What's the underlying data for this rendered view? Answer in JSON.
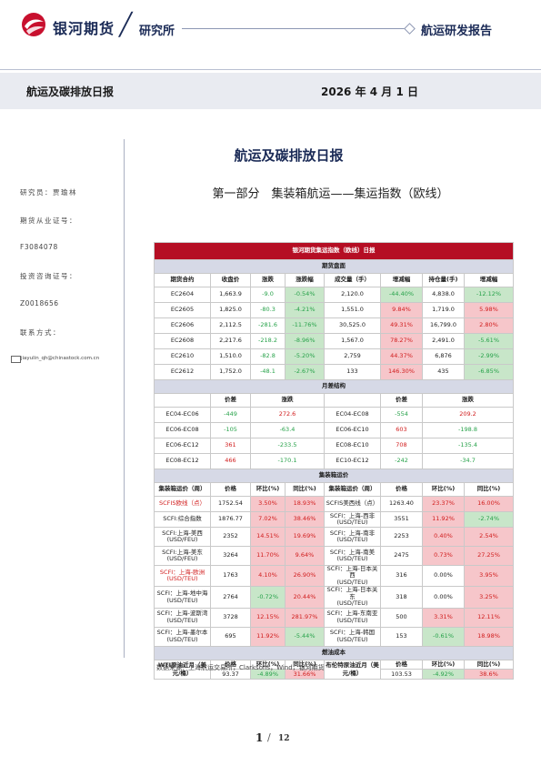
{
  "header": {
    "company": "银河期货",
    "slash": "╱",
    "dept": "研究所",
    "report_type": "航运研发报告"
  },
  "band": {
    "title": "航运及碳排放日报",
    "date": "2026 年 4 月 1 日"
  },
  "sidebar": {
    "researcher_label": "研究员：贾瑜林",
    "futures_cert_label": "期货从业证号：",
    "futures_cert": "F3084078",
    "invest_cert_label": "投资咨询证号：",
    "invest_cert": "Z0018656",
    "contact_label": "联系方式：",
    "email": "jiayulin_qh@chinastock.com.cn"
  },
  "doc_title": "航运及碳排放日报",
  "section_title": "第一部分　集装箱航运——集运指数（欧线）",
  "table": {
    "title": "银河期货集运指数（欧线）日报",
    "sec_futures": "期货盘面",
    "fut_headers": [
      "期货合约",
      "收盘价",
      "涨跌",
      "涨跌幅",
      "成交量（手）",
      "增减幅",
      "持仓量(手)",
      "增减幅"
    ],
    "fut_rows": [
      [
        "EC2604",
        "1,663.9",
        "-9.0",
        "-0.54%",
        "2,120.0",
        "-44.40%",
        "4,838.0",
        "-12.12%"
      ],
      [
        "EC2605",
        "1,825.0",
        "-80.3",
        "-4.21%",
        "1,551.0",
        "9.84%",
        "1,719.0",
        "5.98%"
      ],
      [
        "EC2606",
        "2,112.5",
        "-281.6",
        "-11.76%",
        "30,525.0",
        "49.31%",
        "16,799.0",
        "2.80%"
      ],
      [
        "EC2608",
        "2,217.6",
        "-218.2",
        "-8.96%",
        "1,567.0",
        "78.27%",
        "2,491.0",
        "-5.61%"
      ],
      [
        "EC2610",
        "1,510.0",
        "-82.8",
        "-5.20%",
        "2,759",
        "44.37%",
        "6,876",
        "-2.99%"
      ],
      [
        "EC2612",
        "1,752.0",
        "-48.1",
        "-2.67%",
        "133",
        "146.30%",
        "435",
        "-6.85%"
      ]
    ],
    "sec_spread": "月差结构",
    "spread_headers": [
      "价差",
      "涨跌",
      "价差",
      "涨跌"
    ],
    "spread_rows": [
      [
        "EC04-EC06",
        "-449",
        "272.6",
        "EC04-EC08",
        "-554",
        "209.2"
      ],
      [
        "EC06-EC08",
        "-105",
        "-63.4",
        "EC06-EC10",
        "603",
        "-198.8"
      ],
      [
        "EC06-EC12",
        "361",
        "-233.5",
        "EC08-EC10",
        "708",
        "-135.4"
      ],
      [
        "EC08-EC12",
        "466",
        "-170.1",
        "EC10-EC12",
        "-242",
        "-34.7"
      ]
    ],
    "sec_freight": "集装箱运价",
    "freight_headers": [
      "集装箱运价（周）",
      "价格",
      "环比(%)",
      "同比(%)",
      "集装箱运价（周）",
      "价格",
      "环比(%)",
      "同比(%)"
    ],
    "freight_rows": [
      [
        "SCFIS欧线（点）",
        "1752.54",
        "3.50%",
        "18.93%",
        "SCFIS美西线（点）",
        "1263.40",
        "23.37%",
        "16.00%"
      ],
      [
        "SCFI:综合指数",
        "1876.77",
        "7.02%",
        "38.46%",
        "SCFI：上海-西非\n(USD/TEU)",
        "3551",
        "11.92%",
        "-2.74%"
      ],
      [
        "SCFI:上海-美西\n(USD/FEU)",
        "2352",
        "14.51%",
        "19.69%",
        "SCFI：上海-南非\n(USD/TEU)",
        "2253",
        "0.40%",
        "2.54%"
      ],
      [
        "SCFI:上海-美东\n(USD/FEU)",
        "3264",
        "11.70%",
        "9.64%",
        "SCFI：上海-南美\n(USD/TEU)",
        "2475",
        "0.73%",
        "27.25%"
      ],
      [
        "SCFI：上海-欧洲\n(USD/TEU)",
        "1763",
        "4.10%",
        "26.90%",
        "SCFI：上海-日本关西\n(USD/TEU)",
        "316",
        "0.00%",
        "3.95%"
      ],
      [
        "SCFI：上海-地中海\n(USD/TEU)",
        "2764",
        "-0.72%",
        "20.44%",
        "SCFI：上海-日本关东\n(USD/TEU)",
        "318",
        "0.00%",
        "3.25%"
      ],
      [
        "SCFI：上海-波斯湾\n(USD/TEU)",
        "3728",
        "12.15%",
        "281.97%",
        "SCFI：上海-东南亚\n(USD/TEU)",
        "500",
        "3.31%",
        "12.11%"
      ],
      [
        "SCFI：上海-墨尔本\n(USD/TEU)",
        "695",
        "11.92%",
        "-5.44%",
        "SCFI：上海-韩国\n(USD/TEU)",
        "153",
        "-0.61%",
        "18.98%"
      ]
    ],
    "sec_fuel": "燃油成本",
    "fuel_headers": [
      "WTI原油近月（美元/桶）",
      "价格",
      "环比(%)",
      "同比(%)",
      "布伦特原油近月（美元/桶）",
      "价格",
      "环比(%)",
      "同比(%)"
    ],
    "fuel_row": [
      "",
      "93.37",
      "-4.89%",
      "31.66%",
      "",
      "103.53",
      "-4.92%",
      "38.6%"
    ]
  },
  "source": "数据来源：上海航运交易所，Clarksons，Wind，银河期货",
  "page": {
    "current": "1",
    "sep": "/",
    "total": "12"
  },
  "colors": {
    "brand_red": "#b50e24",
    "navy": "#1a2a56",
    "up_red": "#d11d1d",
    "down_green": "#27a24a",
    "pink_fill": "#f6c6ca",
    "green_fill": "#c8e6c9"
  }
}
